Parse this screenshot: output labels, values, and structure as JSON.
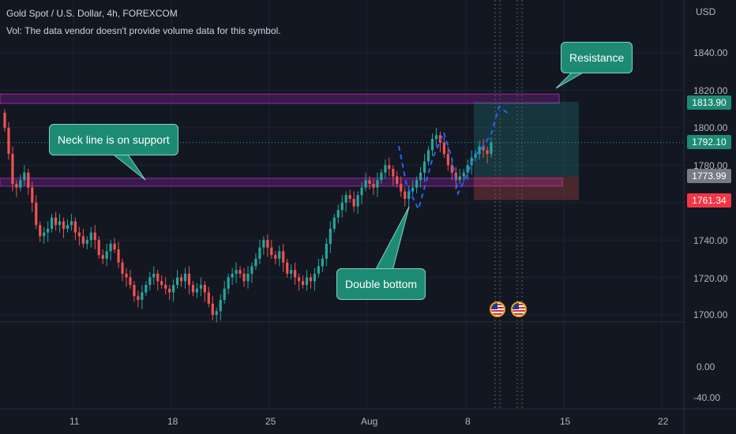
{
  "header": {
    "symbol_line": "Gold Spot / U.S. Dollar, 4h, FOREXCOM",
    "volume_note": "Vol: The data vendor doesn't provide volume data for this symbol."
  },
  "price_axis": {
    "currency": "USD",
    "ticks": [
      "1840.00",
      "1820.00",
      "1800.00",
      "1780.00",
      "1740.00",
      "1720.00",
      "1700.00",
      "0.00",
      "-40.00"
    ]
  },
  "price_tags": {
    "target": "1813.90",
    "current": "1792.10",
    "entry": "1773.99",
    "stop": "1761.34"
  },
  "time_axis": {
    "ticks": [
      "11",
      "18",
      "25",
      "Aug",
      "8",
      "15",
      "22"
    ]
  },
  "annotations": {
    "resistance": "Resistance",
    "neck_line": "Neck line is on support",
    "double_bottom": "Double bottom"
  },
  "colors": {
    "background": "#131722",
    "up_candle": "#26a69a",
    "down_candle": "#ef5350",
    "zone": "#9c27b0",
    "callout": "#1d8a74",
    "target_tag": "#1e8a74",
    "current_tag": "#1e8a74",
    "entry_tag": "#787b86",
    "stop_tag": "#f23645",
    "projection": "#2962ff"
  },
  "chart_data": {
    "type": "candlestick",
    "instrument": "XAUUSD",
    "interval": "4h",
    "ylim": [
      1692,
      1848
    ],
    "horizontal_zones": [
      {
        "name": "Resistance",
        "from": 1813,
        "to": 1818
      },
      {
        "name": "Neck line is on support",
        "from": 1769,
        "to": 1773
      }
    ],
    "position": {
      "target": 1813.9,
      "entry": 1773.99,
      "stop": 1761.34
    },
    "last_price": 1792.1,
    "closes": [
      1800,
      1786,
      1770,
      1768,
      1772,
      1776,
      1768,
      1760,
      1748,
      1742,
      1744,
      1746,
      1752,
      1748,
      1750,
      1746,
      1748,
      1750,
      1744,
      1742,
      1738,
      1740,
      1744,
      1740,
      1732,
      1730,
      1734,
      1738,
      1735,
      1728,
      1722,
      1720,
      1716,
      1710,
      1708,
      1712,
      1716,
      1720,
      1722,
      1718,
      1716,
      1714,
      1712,
      1716,
      1720,
      1718,
      1722,
      1716,
      1712,
      1714,
      1716,
      1712,
      1706,
      1700,
      1702,
      1708,
      1714,
      1720,
      1722,
      1724,
      1722,
      1718,
      1722,
      1726,
      1730,
      1736,
      1740,
      1736,
      1732,
      1730,
      1734,
      1728,
      1722,
      1724,
      1720,
      1718,
      1716,
      1720,
      1718,
      1722,
      1726,
      1730,
      1738,
      1746,
      1752,
      1756,
      1760,
      1764,
      1762,
      1758,
      1764,
      1768,
      1772,
      1770,
      1768,
      1772,
      1776,
      1780,
      1778,
      1774,
      1770,
      1766,
      1762,
      1766,
      1768,
      1772,
      1776,
      1782,
      1788,
      1794,
      1796,
      1792,
      1786,
      1780,
      1776,
      1772,
      1774,
      1776,
      1780,
      1784,
      1786,
      1790,
      1788,
      1786,
      1792
    ]
  }
}
